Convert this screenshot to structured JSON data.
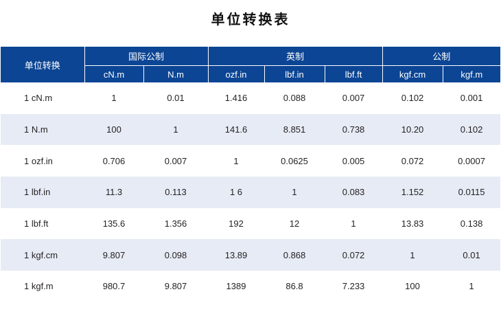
{
  "title": "单位转换表",
  "header": {
    "corner": "单位转换",
    "groups": [
      "国际公制",
      "英制",
      "公制"
    ],
    "units": [
      "cN.m",
      "N.m",
      "ozf.in",
      "lbf.in",
      "lbf.ft",
      "kgf.cm",
      "kgf.m"
    ]
  },
  "rows": [
    {
      "label": "1  cN.m",
      "values": [
        "1",
        "0.01",
        "1.416",
        "0.088",
        "0.007",
        "0.102",
        "0.001"
      ]
    },
    {
      "label": "1  N.m",
      "values": [
        "100",
        "1",
        "141.6",
        "8.851",
        "0.738",
        "10.20",
        "0.102"
      ]
    },
    {
      "label": "1  ozf.in",
      "values": [
        "0.706",
        "0.007",
        "1",
        "0.0625",
        "0.005",
        "0.072",
        "0.0007"
      ]
    },
    {
      "label": "1  lbf.in",
      "values": [
        "11.3",
        "0.113",
        "1 6",
        "1",
        "0.083",
        "1.152",
        "0.0115"
      ]
    },
    {
      "label": "1  lbf.ft",
      "values": [
        "135.6",
        "1.356",
        "192",
        "12",
        "1",
        "13.83",
        "0.138"
      ]
    },
    {
      "label": "1  kgf.cm",
      "values": [
        "9.807",
        "0.098",
        "13.89",
        "0.868",
        "0.072",
        "1",
        "0.01"
      ]
    },
    {
      "label": "1  kgf.m",
      "values": [
        "980.7",
        "9.807",
        "1389",
        "86.8",
        "7.233",
        "100",
        "1"
      ]
    }
  ],
  "colors": {
    "header": "#0c4594",
    "row_alt": "#e6ebf5"
  }
}
